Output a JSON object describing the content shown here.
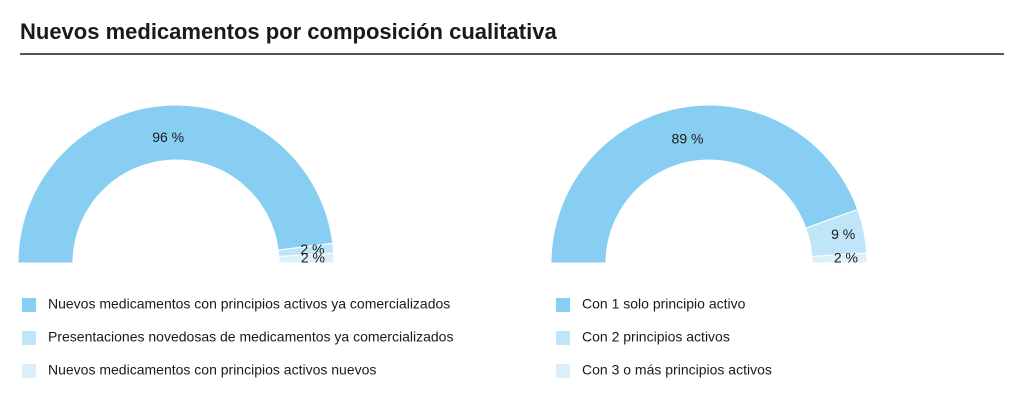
{
  "title": "Nuevos medicamentos por composición cualitativa",
  "chart_data": [
    {
      "type": "pie",
      "half": true,
      "categories": [
        "Nuevos medicamentos con principios activos ya comercializados",
        "Presentaciones novedosas de medicamentos ya comercializados",
        "Nuevos medicamentos con principios activos nuevos"
      ],
      "values": [
        96,
        2,
        2
      ],
      "value_labels": [
        "96 %",
        "2 %",
        "2 %"
      ],
      "colors": [
        "#87cef2",
        "#bfe5f8",
        "#dcf0fb"
      ]
    },
    {
      "type": "pie",
      "half": true,
      "categories": [
        "Con 1 solo principio activo",
        "Con 2 principios activos",
        "Con 3 o más principios activos"
      ],
      "values": [
        89,
        9,
        2
      ],
      "value_labels": [
        "89 %",
        "9 %",
        "2 %"
      ],
      "colors": [
        "#87cef2",
        "#bfe5f8",
        "#dcf0fb"
      ]
    }
  ]
}
